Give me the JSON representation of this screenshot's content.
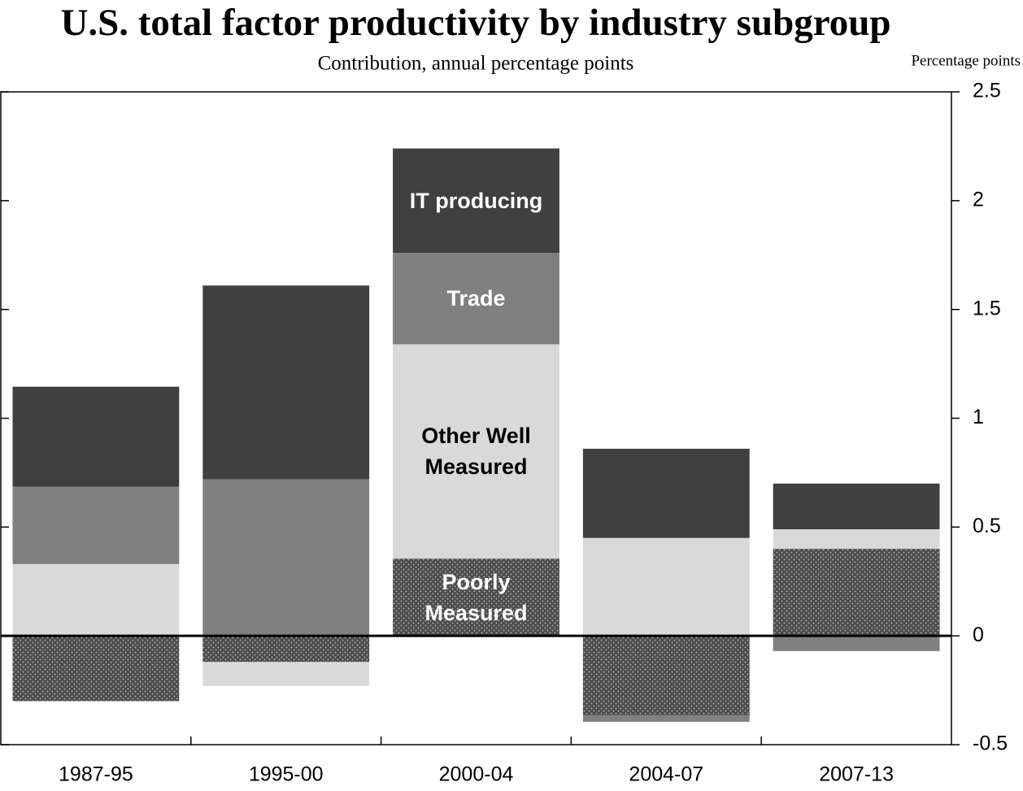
{
  "chart_data": {
    "type": "stacked_bar",
    "title": "U.S. total factor productivity by industry subgroup",
    "subtitle": "Contribution, annual percentage points",
    "y_axis_label": "Percentage points",
    "categories": [
      "1987-95",
      "1995-00",
      "2000-04",
      "2004-07",
      "2007-13"
    ],
    "series": [
      {
        "name": "Poorly Measured",
        "color": "#4d4d4d",
        "pattern": "dots",
        "values": [
          -0.3,
          -0.12,
          0.355,
          -0.365,
          0.4
        ]
      },
      {
        "name": "Other Well Measured",
        "color": "#d9d9d9",
        "values": [
          0.33,
          -0.11,
          0.985,
          0.45,
          0.09
        ]
      },
      {
        "name": "Trade",
        "color": "#808080",
        "values": [
          0.355,
          0.72,
          0.42,
          -0.03,
          -0.07
        ]
      },
      {
        "name": "IT producing",
        "color": "#404040",
        "values": [
          0.46,
          0.89,
          0.48,
          0.41,
          0.21
        ]
      }
    ],
    "ylim": [
      -0.5,
      2.5
    ],
    "yticks": [
      -0.5,
      0,
      0.5,
      1,
      1.5,
      2,
      2.5
    ],
    "y_axis_side": "right"
  }
}
